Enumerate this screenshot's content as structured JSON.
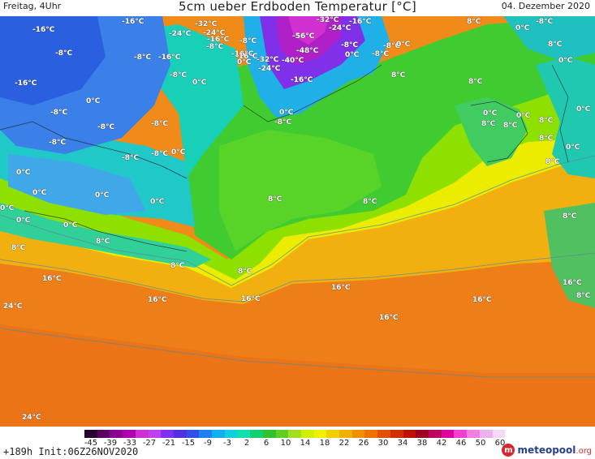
{
  "header": {
    "day_time": "Freitag, 4Uhr",
    "title": "5cm ueber Erdboden Temperatur [°C]",
    "date": "04. Dezember 2020"
  },
  "map_labels": [
    {
      "text": "-16°C",
      "cls": "a1"
    },
    {
      "text": "-16°C",
      "cls": "a2"
    },
    {
      "text": "-8°C",
      "cls": "a3"
    },
    {
      "text": "-24°C",
      "cls": "a4"
    },
    {
      "text": "-32°C",
      "cls": "a5"
    },
    {
      "text": "-24°C",
      "cls": "a6"
    },
    {
      "text": "-16°C",
      "cls": "a7"
    },
    {
      "text": "-8°C",
      "cls": "a8"
    },
    {
      "text": "-32°C",
      "cls": "a9"
    },
    {
      "text": "-16°C",
      "cls": "a10"
    },
    {
      "text": "-24°C",
      "cls": "a11"
    },
    {
      "text": "8°C",
      "cls": "a12"
    },
    {
      "text": "0°C",
      "cls": "a13"
    },
    {
      "text": "-8°C",
      "cls": "a14"
    },
    {
      "text": "-8°C",
      "cls": "a15"
    },
    {
      "text": "-16°C",
      "cls": "a16"
    },
    {
      "text": "-8°C",
      "cls": "a17"
    },
    {
      "text": "-16°C",
      "cls": "a18"
    },
    {
      "text": "-8°C",
      "cls": "a19"
    },
    {
      "text": "-56°C",
      "cls": "a20"
    },
    {
      "text": "-8°C",
      "cls": "a21"
    },
    {
      "text": "-8°C",
      "cls": "a22"
    },
    {
      "text": "0°C",
      "cls": "a23"
    },
    {
      "text": "-16°C",
      "cls": "a24"
    },
    {
      "text": "-48°C",
      "cls": "a25"
    },
    {
      "text": "0°C",
      "cls": "a26"
    },
    {
      "text": "-32°C",
      "cls": "a27"
    },
    {
      "text": "-40°C",
      "cls": "a28"
    },
    {
      "text": "0°C",
      "cls": "a29"
    },
    {
      "text": "-16°C",
      "cls": "a30"
    },
    {
      "text": "-16°C",
      "cls": "a31"
    },
    {
      "text": "-24°C",
      "cls": "a32"
    },
    {
      "text": "0°C",
      "cls": "a33"
    },
    {
      "text": "-8°C",
      "cls": "a34"
    },
    {
      "text": "0°C",
      "cls": "a35"
    },
    {
      "text": "8°C",
      "cls": "a36"
    },
    {
      "text": "-8°C",
      "cls": "a37"
    },
    {
      "text": "0°C",
      "cls": "a38"
    },
    {
      "text": "-8°C",
      "cls": "a39"
    },
    {
      "text": "-8°C",
      "cls": "a40"
    },
    {
      "text": "-8°C",
      "cls": "a41"
    },
    {
      "text": "-8°C",
      "cls": "a42"
    },
    {
      "text": "0°C",
      "cls": "a43"
    },
    {
      "text": "0°C",
      "cls": "a44"
    },
    {
      "text": "0°C",
      "cls": "a45"
    },
    {
      "text": "0°C",
      "cls": "a46"
    },
    {
      "text": "0°C",
      "cls": "a47"
    },
    {
      "text": "0°C",
      "cls": "a48"
    },
    {
      "text": "0°C",
      "cls": "a49"
    },
    {
      "text": "-8°C",
      "cls": "a50"
    },
    {
      "text": "-8°C",
      "cls": "a51"
    },
    {
      "text": "0°C",
      "cls": "a52"
    },
    {
      "text": "0°C",
      "cls": "a53"
    },
    {
      "text": "8°C",
      "cls": "a54"
    },
    {
      "text": "8°C",
      "cls": "a55"
    },
    {
      "text": "8°C",
      "cls": "a56"
    },
    {
      "text": "8°C",
      "cls": "a57"
    },
    {
      "text": "8°C",
      "cls": "a58"
    },
    {
      "text": "8°C",
      "cls": "a59"
    },
    {
      "text": "8°C",
      "cls": "a60"
    },
    {
      "text": "8°C",
      "cls": "a61"
    },
    {
      "text": "8°C",
      "cls": "a62"
    },
    {
      "text": "8°C",
      "cls": "a63"
    },
    {
      "text": "8°C",
      "cls": "a64"
    },
    {
      "text": "16°C",
      "cls": "a65"
    },
    {
      "text": "16°C",
      "cls": "a66"
    },
    {
      "text": "16°C",
      "cls": "a67"
    },
    {
      "text": "16°C",
      "cls": "a68"
    },
    {
      "text": "16°C",
      "cls": "a69"
    },
    {
      "text": "16°C",
      "cls": "a70"
    },
    {
      "text": "16°C",
      "cls": "a71"
    },
    {
      "text": "8°C",
      "cls": "a72"
    },
    {
      "text": "24°C",
      "cls": "a73"
    },
    {
      "text": "24°C",
      "cls": "a74"
    },
    {
      "text": "8°C",
      "cls": "a75"
    },
    {
      "text": "0°C",
      "cls": "a76"
    },
    {
      "text": "0°C",
      "cls": "a77"
    },
    {
      "text": "0°C",
      "cls": "a78"
    },
    {
      "text": "8°C",
      "cls": "a79"
    },
    {
      "text": "0°C",
      "cls": "a80"
    },
    {
      "text": "8°C",
      "cls": "a81"
    }
  ],
  "legend": {
    "colors": [
      "#2a0030",
      "#5a0060",
      "#8a0090",
      "#b000b0",
      "#d030d0",
      "#c040f0",
      "#8030f0",
      "#5030e0",
      "#3050e8",
      "#2080f0",
      "#10b0f0",
      "#10d0e0",
      "#10e0b0",
      "#10d070",
      "#30c030",
      "#60d020",
      "#a0e020",
      "#d0f000",
      "#f0f000",
      "#f0d000",
      "#f0b000",
      "#f09000",
      "#f07000",
      "#e05000",
      "#d03000",
      "#c01000",
      "#a00020",
      "#c00060",
      "#e000a0",
      "#f040d0",
      "#f080e0",
      "#f0b0f0",
      "#f8d8f8"
    ],
    "ticks": [
      "-45",
      "-39",
      "-33",
      "-27",
      "-21",
      "-15",
      "-9",
      "-3",
      "2",
      "6",
      "10",
      "14",
      "18",
      "22",
      "26",
      "30",
      "34",
      "38",
      "42",
      "46",
      "50",
      "60"
    ]
  },
  "footer": {
    "run_info": "+189h  Init:06Z26NOV2020",
    "brand": "meteopool",
    "brand_tld": ".org"
  }
}
